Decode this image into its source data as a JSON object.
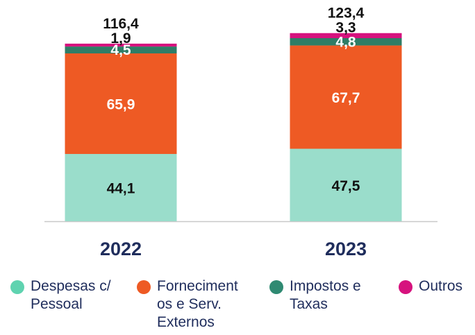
{
  "chart_data": {
    "type": "bar",
    "stacked": true,
    "categories": [
      "2022",
      "2023"
    ],
    "series": [
      {
        "name": "Despesas c/ Pessoal",
        "values": [
          44.1,
          47.5
        ],
        "labels": [
          "44,1",
          "47,5"
        ],
        "color": "#9addcb",
        "label_color": "#111111"
      },
      {
        "name": "Fornecimentos e Serv. Externos",
        "values": [
          65.9,
          67.7
        ],
        "labels": [
          "65,9",
          "67,7"
        ],
        "color": "#ee5a24",
        "label_color": "#ffffff"
      },
      {
        "name": "Impostos e Taxas",
        "values": [
          4.5,
          4.8
        ],
        "labels": [
          "4,5",
          "4,8"
        ],
        "color": "#2f7d66",
        "label_color": "#ffffff"
      },
      {
        "name": "Outros",
        "values": [
          1.9,
          3.3
        ],
        "labels": [
          "1,9",
          "3,3"
        ],
        "color": "#d6127e",
        "label_color": "#111111"
      }
    ],
    "totals": [
      "116,4",
      "123,4"
    ],
    "ylim": [
      0,
      123.4
    ],
    "grid": false,
    "legend_position": "bottom"
  },
  "legend": [
    {
      "lines": [
        "Despesas c/",
        "Pessoal"
      ],
      "color": "#5fd3b0"
    },
    {
      "lines": [
        "Forneciment",
        "os e Serv.",
        "Externos"
      ],
      "color": "#ee5a24"
    },
    {
      "lines": [
        "Impostos e",
        "Taxas"
      ],
      "color": "#2f8a72"
    },
    {
      "lines": [
        "Outros"
      ],
      "color": "#d6127e"
    }
  ],
  "colors": {
    "axis": "#c8c8c8",
    "category_label": "#1f2d5c"
  }
}
